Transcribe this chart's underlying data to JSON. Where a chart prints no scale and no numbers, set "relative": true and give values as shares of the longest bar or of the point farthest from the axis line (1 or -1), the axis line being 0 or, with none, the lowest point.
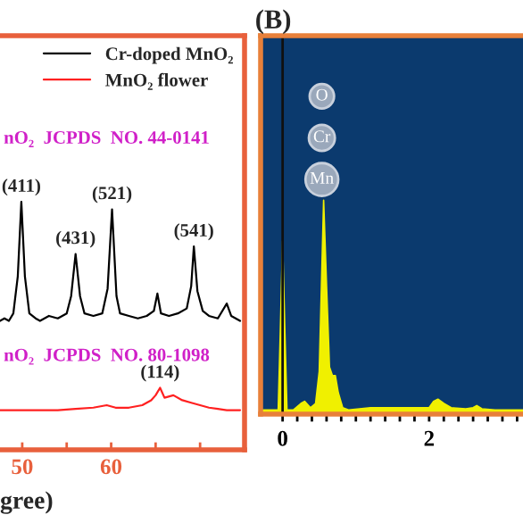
{
  "chart_data": [
    {
      "type": "line",
      "relative": true,
      "xlabel": "gree)",
      "xlim": [
        47.5,
        75
      ],
      "xticks": [
        50,
        {
          "value": 55,
          "label": null
        },
        60,
        {
          "value": 65,
          "label": null
        },
        {
          "value": 70,
          "label": null
        }
      ],
      "legend": "top right",
      "marker": "none",
      "line_style": "solid",
      "series": [
        {
          "name": "Cr-doped MnO₂",
          "color": "#000000",
          "x": [
            47.5,
            48,
            48.5,
            49,
            49.5,
            49.9,
            50.3,
            50.8,
            51.5,
            52,
            53,
            54,
            55,
            55.5,
            56,
            56.5,
            57,
            58,
            59,
            59.6,
            60.1,
            60.6,
            61,
            62,
            63,
            64,
            64.8,
            65.2,
            65.6,
            66.5,
            67.5,
            68.5,
            69,
            69.3,
            69.7,
            70.3,
            71,
            72,
            73,
            73.5,
            74.5
          ],
          "values": [
            0.52,
            0.53,
            0.52,
            0.55,
            0.7,
            1.0,
            0.7,
            0.55,
            0.53,
            0.52,
            0.54,
            0.53,
            0.55,
            0.62,
            0.79,
            0.62,
            0.55,
            0.54,
            0.55,
            0.65,
            0.97,
            0.62,
            0.55,
            0.54,
            0.53,
            0.54,
            0.56,
            0.63,
            0.55,
            0.54,
            0.55,
            0.57,
            0.66,
            0.82,
            0.64,
            0.56,
            0.54,
            0.53,
            0.59,
            0.54,
            0.52
          ]
        },
        {
          "name": "MnO₂ flower",
          "color": "#ff2020",
          "x": [
            47.5,
            50,
            52,
            54,
            56,
            58,
            59.5,
            60.5,
            62,
            63.5,
            64.5,
            65,
            65.5,
            66,
            67,
            68,
            69,
            70,
            71,
            72,
            73,
            74.5
          ],
          "values": [
            0.16,
            0.16,
            0.16,
            0.16,
            0.165,
            0.17,
            0.18,
            0.17,
            0.17,
            0.18,
            0.2,
            0.22,
            0.25,
            0.21,
            0.22,
            0.2,
            0.19,
            0.18,
            0.17,
            0.165,
            0.16,
            0.16
          ]
        }
      ],
      "annotations": [
        "nO₂  JCPDS  NO. 44-0141",
        "nO₂  JCPDS  NO. 80-1098",
        {
          "text": "(411)",
          "x": 49.9,
          "y": 1.0
        },
        {
          "text": "(431)",
          "x": 56,
          "y": 0.79
        },
        {
          "text": "(521)",
          "x": 60.1,
          "y": 0.97
        },
        {
          "text": "(541)",
          "x": 69.3,
          "y": 0.82
        },
        {
          "text": "(114)",
          "x": 65.5,
          "y": 0.25
        }
      ]
    },
    {
      "type": "area",
      "relative": true,
      "title": "(B)",
      "xlim": [
        -0.3,
        3.5
      ],
      "xticks": [
        0,
        {
          "value": 0.2,
          "label": null
        },
        {
          "value": 0.4,
          "label": null
        },
        {
          "value": 0.6,
          "label": null
        },
        {
          "value": 0.8,
          "label": null
        },
        {
          "value": 1.0,
          "label": null
        },
        {
          "value": 1.2,
          "label": null
        },
        {
          "value": 1.4,
          "label": null
        },
        {
          "value": 1.6,
          "label": null
        },
        {
          "value": 1.8,
          "label": null
        },
        2,
        {
          "value": 2.2,
          "label": null
        },
        {
          "value": 2.4,
          "label": null
        },
        {
          "value": 2.6,
          "label": null
        },
        {
          "value": 2.8,
          "label": null
        },
        {
          "value": 3.0,
          "label": null
        },
        {
          "value": 3.2,
          "label": null
        }
      ],
      "series": [
        {
          "color": "#f0f000",
          "x": [
            -0.3,
            -0.06,
            -0.03,
            0,
            0.03,
            0.06,
            0.15,
            0.25,
            0.3,
            0.38,
            0.45,
            0.5,
            0.53,
            0.56,
            0.6,
            0.64,
            0.68,
            0.72,
            0.76,
            0.82,
            0.9,
            1.2,
            1.6,
            2.0,
            2.06,
            2.12,
            2.2,
            2.3,
            2.5,
            2.6,
            2.65,
            2.72,
            2.9,
            3.5
          ],
          "values": [
            0.02,
            0.02,
            0.4,
            0.81,
            0.4,
            0.02,
            0.02,
            0.05,
            0.06,
            0.03,
            0.05,
            0.2,
            0.6,
            1.0,
            0.6,
            0.22,
            0.18,
            0.18,
            0.1,
            0.03,
            0.02,
            0.03,
            0.03,
            0.03,
            0.06,
            0.07,
            0.05,
            0.03,
            0.025,
            0.03,
            0.04,
            0.025,
            0.02,
            0.02
          ]
        }
      ],
      "ref_lines": [
        {
          "axis": "x",
          "value": 0,
          "color": "#101010"
        }
      ],
      "annotations": [
        "O",
        "Cr",
        "Mn"
      ]
    }
  ]
}
